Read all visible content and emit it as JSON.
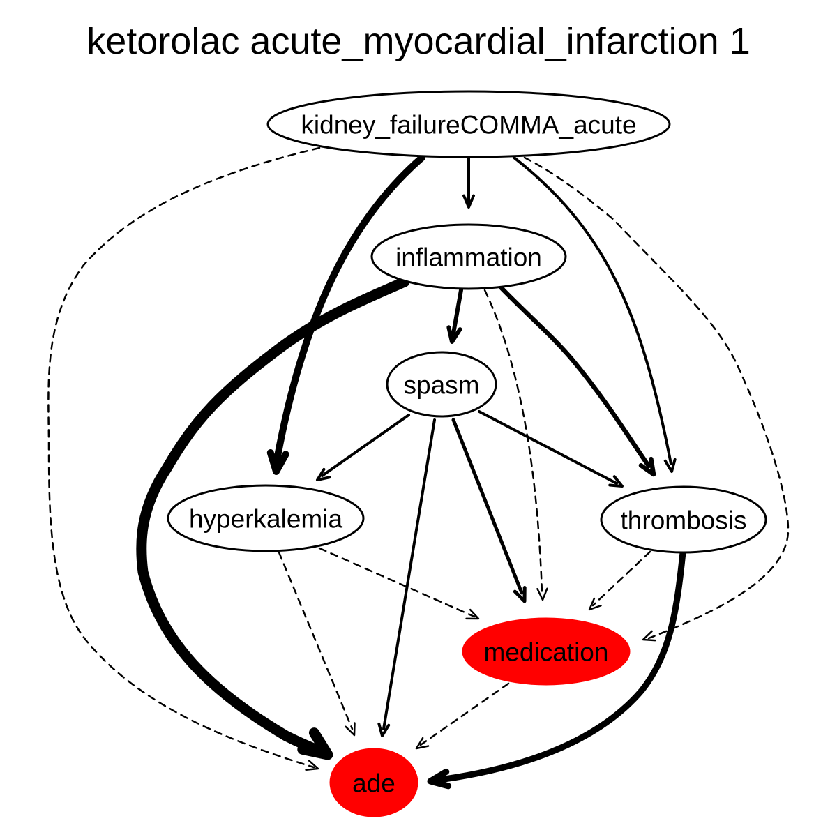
{
  "title": "ketorolac acute_myocardial_infarction 1",
  "colors": {
    "highlight": "#ff0000",
    "node_fill": "#ffffff",
    "stroke": "#000000"
  },
  "nodes": [
    {
      "id": "kidney",
      "label": "kidney_failureCOMMA_acute",
      "highlighted": false
    },
    {
      "id": "inflammation",
      "label": "inflammation",
      "highlighted": false
    },
    {
      "id": "spasm",
      "label": "spasm",
      "highlighted": false
    },
    {
      "id": "hyperkalemia",
      "label": "hyperkalemia",
      "highlighted": false
    },
    {
      "id": "thrombosis",
      "label": "thrombosis",
      "highlighted": false
    },
    {
      "id": "medication",
      "label": "medication",
      "highlighted": true
    },
    {
      "id": "ade",
      "label": "ade",
      "highlighted": true
    }
  ],
  "edges": [
    {
      "from": "kidney",
      "to": "inflammation",
      "style": "solid"
    },
    {
      "from": "kidney",
      "to": "hyperkalemia",
      "style": "solid"
    },
    {
      "from": "kidney",
      "to": "thrombosis",
      "style": "solid"
    },
    {
      "from": "kidney",
      "to": "ade",
      "style": "dashed"
    },
    {
      "from": "kidney",
      "to": "medication",
      "style": "dashed"
    },
    {
      "from": "inflammation",
      "to": "spasm",
      "style": "solid"
    },
    {
      "from": "inflammation",
      "to": "ade",
      "style": "solid"
    },
    {
      "from": "inflammation",
      "to": "thrombosis",
      "style": "solid"
    },
    {
      "from": "inflammation",
      "to": "medication",
      "style": "dashed"
    },
    {
      "from": "spasm",
      "to": "hyperkalemia",
      "style": "solid"
    },
    {
      "from": "spasm",
      "to": "thrombosis",
      "style": "solid"
    },
    {
      "from": "spasm",
      "to": "medication",
      "style": "solid"
    },
    {
      "from": "spasm",
      "to": "ade",
      "style": "solid"
    },
    {
      "from": "hyperkalemia",
      "to": "medication",
      "style": "dashed"
    },
    {
      "from": "hyperkalemia",
      "to": "ade",
      "style": "dashed"
    },
    {
      "from": "thrombosis",
      "to": "medication",
      "style": "dashed"
    },
    {
      "from": "thrombosis",
      "to": "ade",
      "style": "solid"
    },
    {
      "from": "medication",
      "to": "ade",
      "style": "dashed"
    }
  ]
}
